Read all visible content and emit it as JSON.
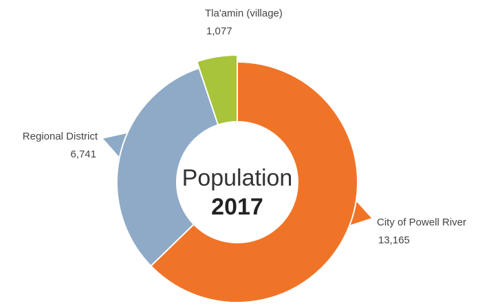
{
  "chart_data": {
    "type": "donut",
    "center_title": "Population",
    "center_subtitle": "2017",
    "categories": [
      "City of Powell River",
      "Regional District",
      "Tla'amin (village)"
    ],
    "values": [
      13165,
      6741,
      1077
    ],
    "value_labels": [
      "13,165",
      "6,741",
      "1,077"
    ],
    "colors": [
      "#f07428",
      "#8eaac6",
      "#a7c43a"
    ]
  }
}
